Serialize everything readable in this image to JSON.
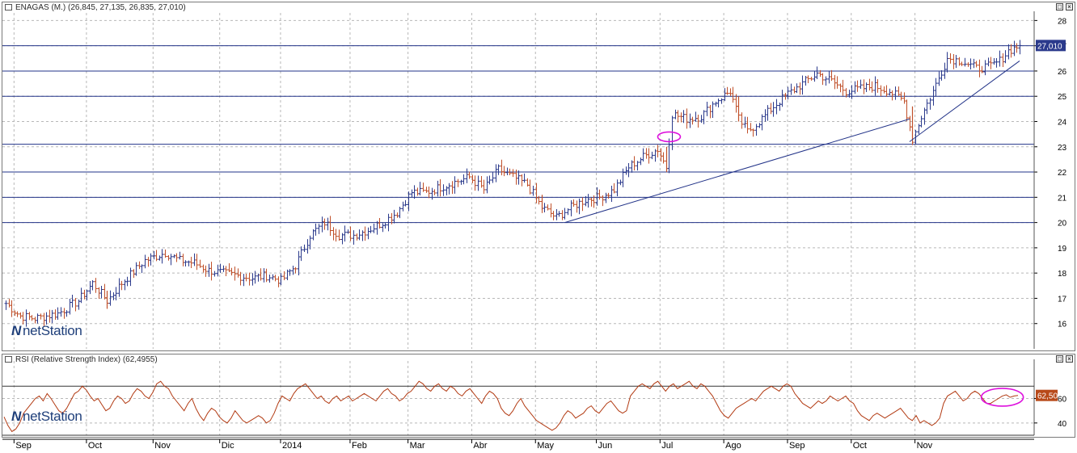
{
  "price_panel": {
    "title": "ENAGAS (M.) (26,845, 27,135, 26,835, 27,010)",
    "last_value_label": "27,010",
    "window_buttons": [
      "□",
      "×"
    ]
  },
  "rsi_panel": {
    "title": "RSI (Relative Strength Index) (62,4955)",
    "last_value_label": "62,50",
    "window_buttons": [
      "□",
      "×"
    ]
  },
  "logo": {
    "mark": "N",
    "text": "netStation"
  },
  "colors": {
    "up_bar": "#2b3a8c",
    "down_bar": "#c0502a",
    "rsi_line": "#b23a12",
    "hline": "#223388",
    "trendline": "#223388",
    "annotation": "#dd10dd",
    "price_label_bg": "#2b3a8c",
    "rsi_label_bg": "#b84a1a"
  },
  "chart_data": [
    {
      "type": "ohlc",
      "title": "ENAGAS (M.) (26,845, 27,135, 26,835, 27,010)",
      "ylim": [
        15.0,
        28.3
      ],
      "y_ticks": [
        16,
        17,
        18,
        19,
        20,
        21,
        22,
        23,
        24,
        25,
        26,
        27,
        28
      ],
      "y_tick_labels": [
        "16",
        "17",
        "18",
        "19",
        "20",
        "21",
        "22",
        "23",
        "24",
        "25",
        "26",
        "27",
        "28"
      ],
      "horizontal_lines": [
        20.0,
        21.0,
        22.0,
        23.1,
        25.0,
        26.0,
        27.0
      ],
      "grid": true,
      "last_value": 27.01,
      "months": [
        "Sep",
        "Oct",
        "Nov",
        "Dic",
        "2014",
        "Feb",
        "Mar",
        "Abr",
        "May",
        "Jun",
        "Jul",
        "Ago",
        "Sep",
        "Oct",
        "Nov"
      ],
      "close_path": [
        [
          0,
          16.8
        ],
        [
          5,
          16.3
        ],
        [
          10,
          16.2
        ],
        [
          18,
          16.4
        ],
        [
          25,
          16.9
        ],
        [
          30,
          17.6
        ],
        [
          35,
          16.9
        ],
        [
          40,
          17.6
        ],
        [
          48,
          18.5
        ],
        [
          55,
          18.8
        ],
        [
          60,
          18.5
        ],
        [
          65,
          18.4
        ],
        [
          70,
          18.1
        ],
        [
          75,
          18.0
        ],
        [
          80,
          17.9
        ],
        [
          85,
          17.8
        ],
        [
          90,
          17.9
        ],
        [
          95,
          17.7
        ],
        [
          100,
          18.3
        ],
        [
          105,
          19.5
        ],
        [
          110,
          20.0
        ],
        [
          115,
          19.5
        ],
        [
          120,
          19.5
        ],
        [
          125,
          19.7
        ],
        [
          130,
          20.0
        ],
        [
          135,
          20.4
        ],
        [
          140,
          21.2
        ],
        [
          145,
          21.2
        ],
        [
          150,
          21.4
        ],
        [
          155,
          21.6
        ],
        [
          160,
          21.8
        ],
        [
          165,
          21.3
        ],
        [
          170,
          22.1
        ],
        [
          175,
          21.8
        ],
        [
          180,
          21.5
        ],
        [
          185,
          20.6
        ],
        [
          190,
          20.2
        ],
        [
          195,
          20.6
        ],
        [
          200,
          20.9
        ],
        [
          205,
          21.0
        ],
        [
          210,
          21.3
        ],
        [
          215,
          22.2
        ],
        [
          220,
          22.6
        ],
        [
          225,
          22.9
        ],
        [
          228,
          22.2
        ],
        [
          230,
          24.3
        ],
        [
          235,
          24.1
        ],
        [
          240,
          24.2
        ],
        [
          245,
          24.8
        ],
        [
          250,
          25.2
        ],
        [
          253,
          24.1
        ],
        [
          256,
          23.6
        ],
        [
          260,
          24.0
        ],
        [
          265,
          24.6
        ],
        [
          270,
          25.1
        ],
        [
          275,
          25.5
        ],
        [
          280,
          25.9
        ],
        [
          285,
          25.6
        ],
        [
          290,
          25.2
        ],
        [
          295,
          25.3
        ],
        [
          300,
          25.4
        ],
        [
          305,
          25.2
        ],
        [
          310,
          24.8
        ],
        [
          313,
          23.3
        ],
        [
          316,
          24.2
        ],
        [
          320,
          25.2
        ],
        [
          325,
          26.5
        ],
        [
          330,
          26.4
        ],
        [
          335,
          26.1
        ],
        [
          340,
          26.2
        ],
        [
          343,
          26.4
        ],
        [
          346,
          26.8
        ],
        [
          350,
          27.01
        ]
      ],
      "down_moves": [
        [
          253,
          24.0,
          25.0
        ],
        [
          313,
          23.3,
          24.6
        ],
        [
          228,
          22.0,
          23.0
        ],
        [
          35,
          16.6,
          17.3
        ],
        [
          185,
          20.5,
          21.1
        ]
      ],
      "trendlines": [
        [
          [
            193,
            20.0
          ],
          [
            312,
            24.1
          ]
        ],
        [
          [
            312,
            23.2
          ],
          [
            350,
            26.4
          ]
        ]
      ],
      "annotations": [
        {
          "shape": "ellipse",
          "x": 229,
          "y": 23.3
        }
      ]
    },
    {
      "type": "line",
      "title": "RSI (Relative Strength Index) (62,4955)",
      "ylim": [
        30,
        88
      ],
      "y_ticks": [
        40,
        60
      ],
      "y_tick_labels": [
        "40",
        "60"
      ],
      "horizontal_lines": [
        30,
        70
      ],
      "grid": true,
      "last_value": 62.5,
      "series": [
        {
          "values": [
            45,
            38,
            33,
            35,
            40,
            48,
            52,
            56,
            60,
            62,
            58,
            64,
            60,
            55,
            50,
            48,
            52,
            58,
            64,
            66,
            70,
            67,
            62,
            58,
            60,
            55,
            50,
            52,
            58,
            62,
            60,
            56,
            58,
            64,
            68,
            66,
            62,
            60,
            65,
            72,
            74,
            70,
            68,
            62,
            58,
            54,
            50,
            56,
            60,
            52,
            46,
            42,
            48,
            52,
            50,
            45,
            42,
            40,
            44,
            50,
            46,
            42,
            40,
            42,
            44,
            46,
            44,
            40,
            42,
            48,
            56,
            62,
            60,
            58,
            64,
            68,
            70,
            72,
            68,
            64,
            60,
            62,
            58,
            56,
            60,
            62,
            58,
            60,
            62,
            58,
            60,
            62,
            64,
            62,
            60,
            58,
            62,
            66,
            68,
            64,
            62,
            58,
            60,
            64,
            66,
            70,
            74,
            72,
            68,
            66,
            70,
            72,
            68,
            66,
            70,
            68,
            64,
            62,
            66,
            68,
            64,
            60,
            56,
            62,
            66,
            64,
            60,
            52,
            48,
            46,
            50,
            56,
            60,
            54,
            50,
            46,
            42,
            40,
            38,
            36,
            34,
            36,
            40,
            46,
            50,
            48,
            44,
            46,
            48,
            52,
            54,
            50,
            48,
            52,
            56,
            58,
            54,
            50,
            48,
            50,
            62,
            66,
            70,
            72,
            70,
            68,
            72,
            74,
            70,
            66,
            70,
            72,
            68,
            70,
            72,
            74,
            70,
            68,
            72,
            70,
            66,
            62,
            56,
            50,
            46,
            44,
            48,
            52,
            54,
            56,
            58,
            60,
            58,
            62,
            66,
            68,
            70,
            68,
            66,
            70,
            72,
            70,
            64,
            60,
            56,
            54,
            52,
            55,
            58,
            56,
            58,
            62,
            60,
            58,
            60,
            62,
            58,
            56,
            50,
            46,
            44,
            42,
            46,
            48,
            46,
            44,
            46,
            48,
            50,
            52,
            48,
            44,
            42,
            46,
            40,
            42,
            40,
            38,
            40,
            44,
            56,
            62,
            64,
            66,
            62,
            58,
            60,
            64,
            66,
            64,
            60,
            56,
            56,
            58,
            60,
            62,
            63,
            61,
            62,
            62.5
          ]
        }
      ],
      "annotations": [
        {
          "shape": "ellipse",
          "index": 255,
          "value": 61
        }
      ]
    }
  ]
}
